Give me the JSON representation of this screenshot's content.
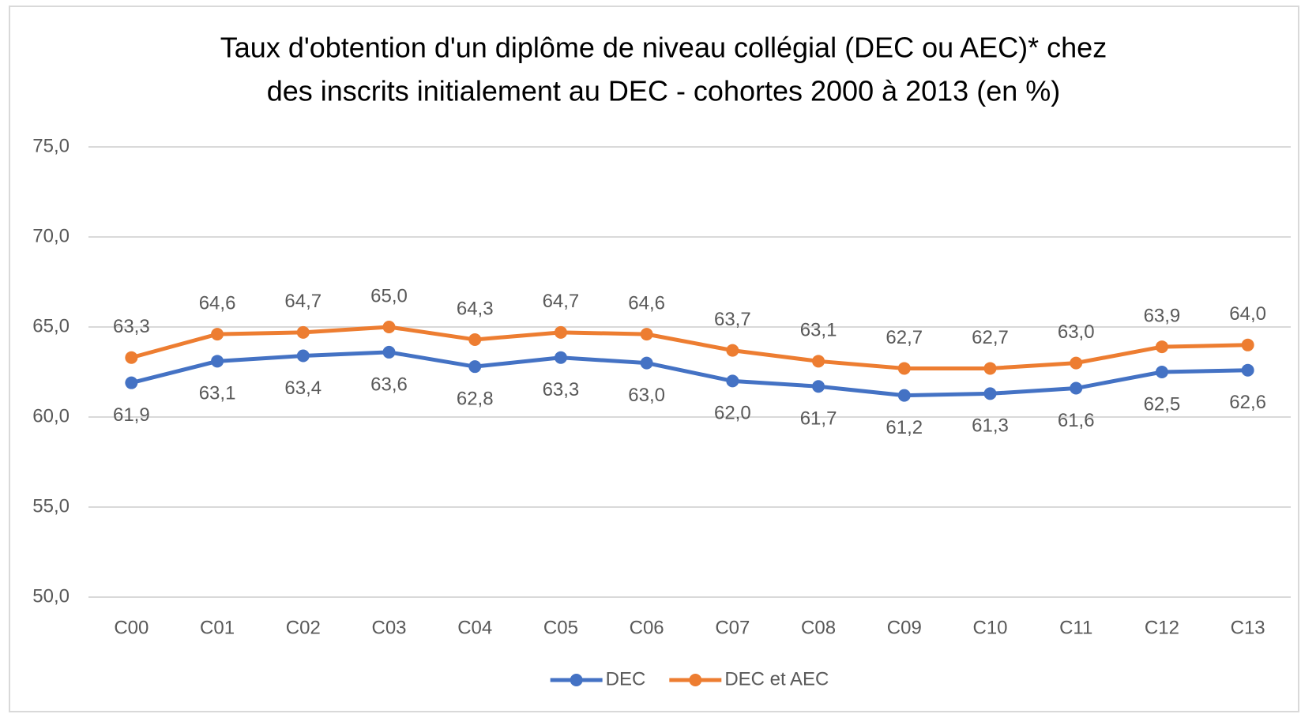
{
  "chart_data": {
    "type": "line",
    "title": [
      "Taux d'obtention d'un diplôme de niveau collégial (DEC ou AEC)* chez",
      "des inscrits initialement au DEC - cohortes 2000 à 2013 (en %)"
    ],
    "categories": [
      "C00",
      "C01",
      "C02",
      "C03",
      "C04",
      "C05",
      "C06",
      "C07",
      "C08",
      "C09",
      "C10",
      "C11",
      "C12",
      "C13"
    ],
    "series": [
      {
        "name": "DEC",
        "color": "#4472c4",
        "values": [
          61.9,
          63.1,
          63.4,
          63.6,
          62.8,
          63.3,
          63.0,
          62.0,
          61.7,
          61.2,
          61.3,
          61.6,
          62.5,
          62.6
        ],
        "value_labels": [
          "61,9",
          "63,1",
          "63,4",
          "63,6",
          "62,8",
          "63,3",
          "63,0",
          "62,0",
          "61,7",
          "61,2",
          "61,3",
          "61,6",
          "62,5",
          "62,6"
        ]
      },
      {
        "name": "DEC et AEC",
        "color": "#ed7d31",
        "values": [
          63.3,
          64.6,
          64.7,
          65.0,
          64.3,
          64.7,
          64.6,
          63.7,
          63.1,
          62.7,
          62.7,
          63.0,
          63.9,
          64.0
        ],
        "value_labels": [
          "63,3",
          "64,6",
          "64,7",
          "65,0",
          "64,3",
          "64,7",
          "64,6",
          "63,7",
          "63,1",
          "62,7",
          "62,7",
          "63,0",
          "63,9",
          "64,0"
        ]
      }
    ],
    "ylim": [
      50,
      75
    ],
    "yticks": [
      {
        "value": 50,
        "label": "50,0"
      },
      {
        "value": 55,
        "label": "55,0"
      },
      {
        "value": 60,
        "label": "60,0"
      },
      {
        "value": 65,
        "label": "65,0"
      },
      {
        "value": 70,
        "label": "70,0"
      },
      {
        "value": 75,
        "label": "75,0"
      }
    ],
    "grid": true,
    "legend": "bottom"
  }
}
